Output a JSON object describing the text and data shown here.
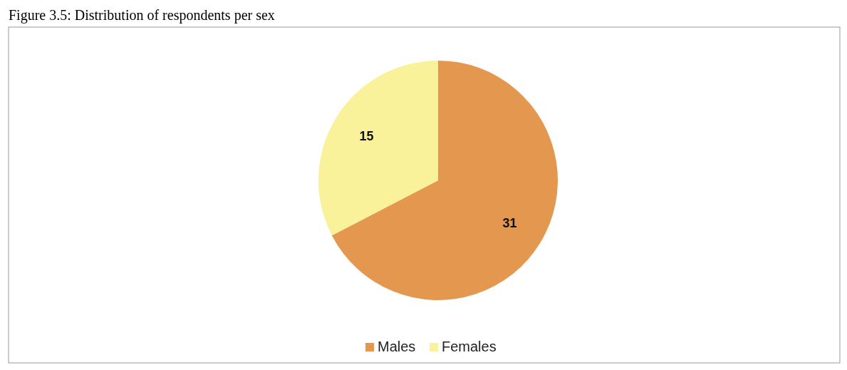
{
  "chart_data": {
    "type": "pie",
    "title": "Figure 3.5: Distribution of respondents per sex",
    "categories": [
      "Males",
      "Females"
    ],
    "values": [
      31,
      15
    ],
    "colors": [
      "#e3974f",
      "#f9f29a"
    ],
    "data_labels": true,
    "legend": "bottom"
  }
}
